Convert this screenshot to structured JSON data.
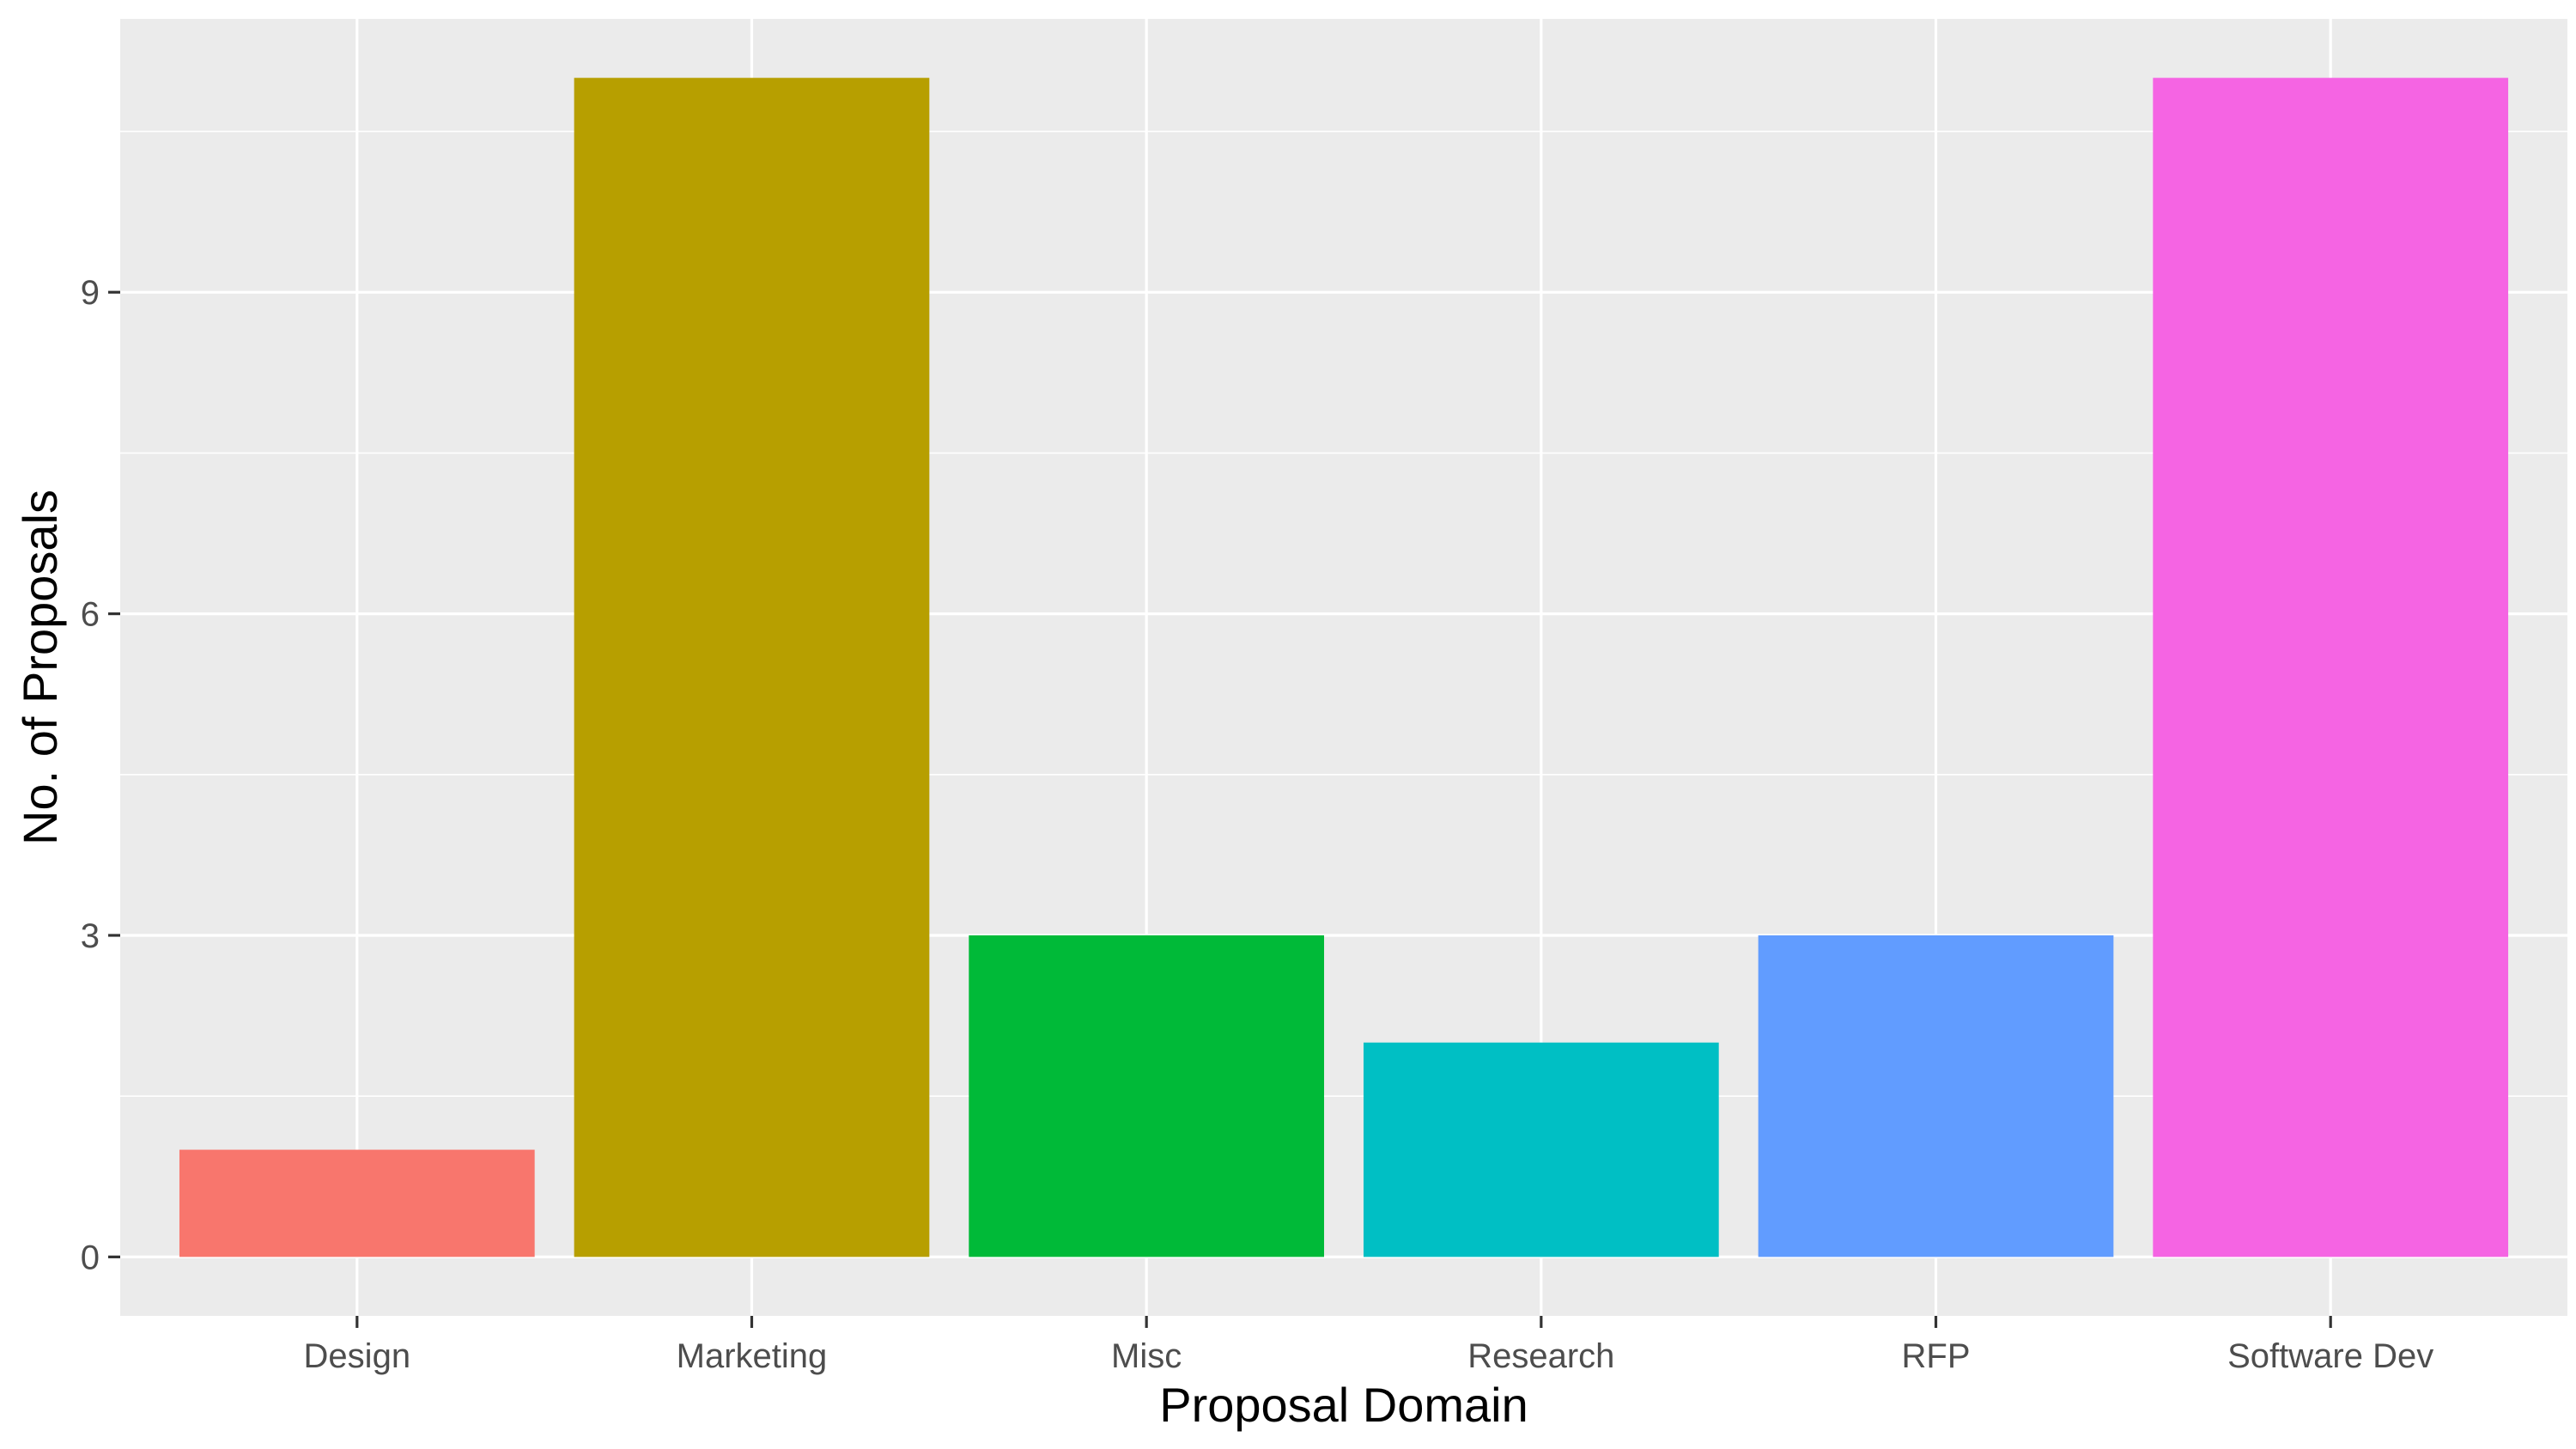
{
  "chart_data": {
    "type": "bar",
    "categories": [
      "Design",
      "Marketing",
      "Misc",
      "Research",
      "RFP",
      "Software Dev"
    ],
    "values": [
      1,
      11,
      3,
      2,
      3,
      11
    ],
    "colors": [
      "#F8766D",
      "#B79F00",
      "#00BA38",
      "#00BFC4",
      "#619CFF",
      "#F564E3"
    ],
    "xlabel": "Proposal Domain",
    "ylabel": "No. of Proposals",
    "ylim": [
      -0.55,
      11.55
    ],
    "yticks": [
      0,
      3,
      6,
      9
    ],
    "grid": true,
    "legend": "none"
  }
}
